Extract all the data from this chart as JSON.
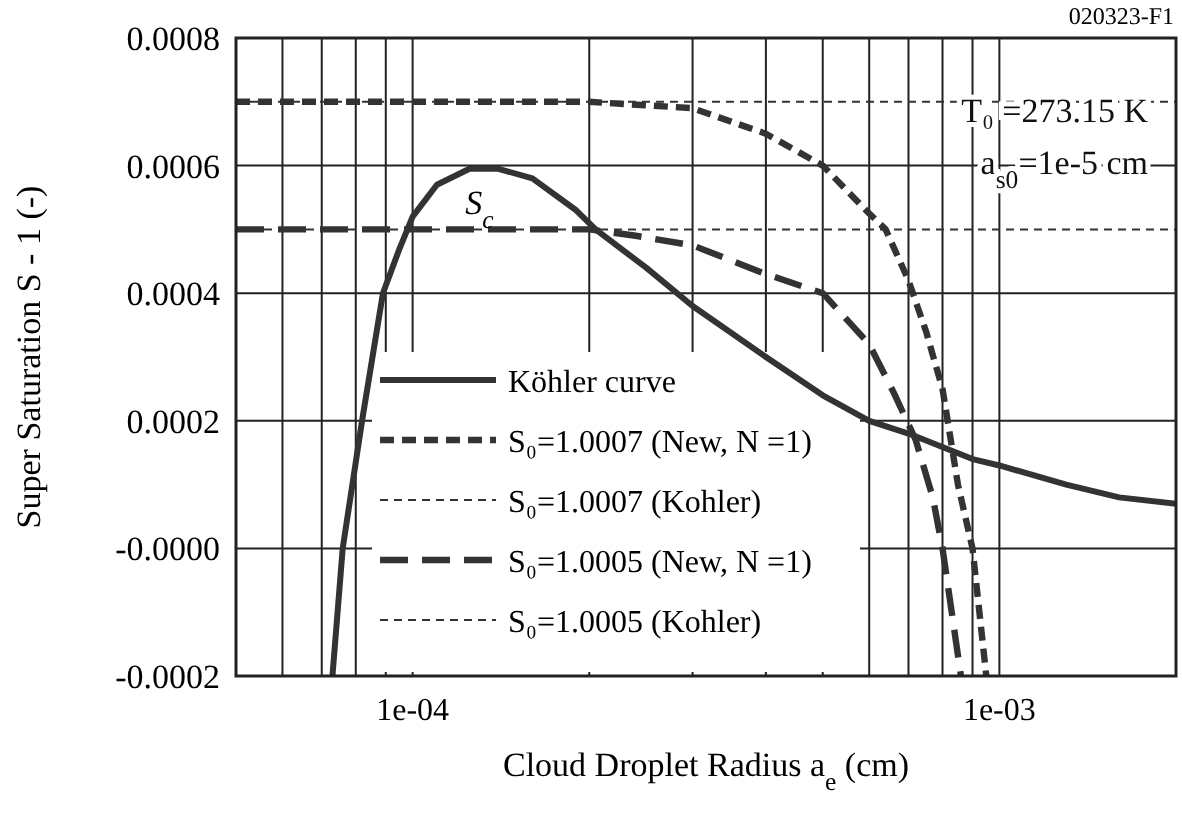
{
  "chart_data": {
    "type": "line",
    "xlabel": "Cloud Droplet Radius a$_{e}$ (cm)",
    "ylabel": "Super Saturation S - 1 (-)",
    "log": "x",
    "xlim": [
      5e-05,
      0.002
    ],
    "xticks": [
      {
        "value": 6e-05,
        "label": null
      },
      {
        "value": 7e-05,
        "label": null
      },
      {
        "value": 8e-05,
        "label": null
      },
      {
        "value": 9e-05,
        "label": null
      },
      {
        "value": 0.0001,
        "label": "1e-04"
      },
      {
        "value": 0.0002,
        "label": null
      },
      {
        "value": 0.0003,
        "label": null
      },
      {
        "value": 0.0004,
        "label": null
      },
      {
        "value": 0.0005,
        "label": null
      },
      {
        "value": 0.0006,
        "label": null
      },
      {
        "value": 0.0007,
        "label": null
      },
      {
        "value": 0.0008,
        "label": null
      },
      {
        "value": 0.0009,
        "label": null
      },
      {
        "value": 0.001,
        "label": "1e-03"
      }
    ],
    "ylim": [
      -0.0002,
      0.0008
    ],
    "yticks": [
      {
        "value": -0.0002,
        "label": "-0.0002"
      },
      {
        "value": 0,
        "label": "-0.0000"
      },
      {
        "value": 0.0002,
        "label": "0.0002"
      },
      {
        "value": 0.0004,
        "label": "0.0004"
      },
      {
        "value": 0.0006,
        "label": "0.0006"
      },
      {
        "value": 0.0008,
        "label": "0.0008"
      }
    ],
    "grid": true,
    "legend": "bottom left",
    "series": [
      {
        "name": "Köhler curve",
        "color": "#333333",
        "line_style": "solid",
        "x": [
          7.3e-05,
          7.6e-05,
          8.2e-05,
          8.9e-05,
          9.5e-05,
          0.0001,
          0.00011,
          0.000125,
          0.00014,
          0.00016,
          0.00019,
          0.000205,
          0.00025,
          0.0003,
          0.0004,
          0.0005,
          0.0006,
          0.0007,
          0.0009,
          0.001,
          0.0013,
          0.0016,
          0.002
        ],
        "values": [
          -0.0002,
          0,
          0.0002,
          0.0004,
          0.00047,
          0.00052,
          0.00057,
          0.000595,
          0.000595,
          0.00058,
          0.00053,
          0.0005,
          0.00044,
          0.00038,
          0.0003,
          0.00024,
          0.0002,
          0.00018,
          0.00014,
          0.00013,
          0.0001,
          8e-05,
          7e-05
        ]
      },
      {
        "name": "S₀=1.0007 (New, N =1)",
        "color": "#333333",
        "line_style": "dashed",
        "x": [
          5e-05,
          0.0001,
          0.0002,
          0.0003,
          0.0004,
          0.0005,
          0.0006,
          0.00064,
          0.0007,
          0.00075,
          0.0008,
          0.00085,
          0.0009,
          0.00095
        ],
        "values": [
          0.0007,
          0.0007,
          0.0007,
          0.00069,
          0.00065,
          0.0006,
          0.000525,
          0.0005,
          0.00042,
          0.00034,
          0.00025,
          0.0001,
          0,
          -0.0002
        ]
      },
      {
        "name": "S₀=1.0007 (Kohler)",
        "color": "#333333",
        "line_style": "dotted",
        "x": [
          5e-05,
          0.002
        ],
        "values": [
          0.0007,
          0.0007
        ]
      },
      {
        "name": "S₀=1.0005 (New, N =1)",
        "color": "#333333",
        "line_style": "dashed",
        "x": [
          5e-05,
          0.0001,
          0.0002,
          0.00024,
          0.0003,
          0.0004,
          0.0005,
          0.0006,
          0.00066,
          0.00072,
          0.00077,
          0.0008,
          0.00086
        ],
        "values": [
          0.0005,
          0.0005,
          0.0005,
          0.00049,
          0.000475,
          0.00043,
          0.0004,
          0.00032,
          0.000245,
          0.00017,
          8e-05,
          0,
          -0.0002
        ]
      },
      {
        "name": "S₀=1.0005 (Kohler)",
        "color": "#333333",
        "line_style": "dotted",
        "x": [
          5e-05,
          0.002
        ],
        "values": [
          0.0005,
          0.0005
        ]
      }
    ],
    "annotations": [
      "020323-F1",
      "T₀ =273.15 K",
      "a$_{s0}$=1e-5 cm",
      {
        "text": "S$_{c}$",
        "x": 0.00013,
        "y": 0.0006
      }
    ]
  }
}
